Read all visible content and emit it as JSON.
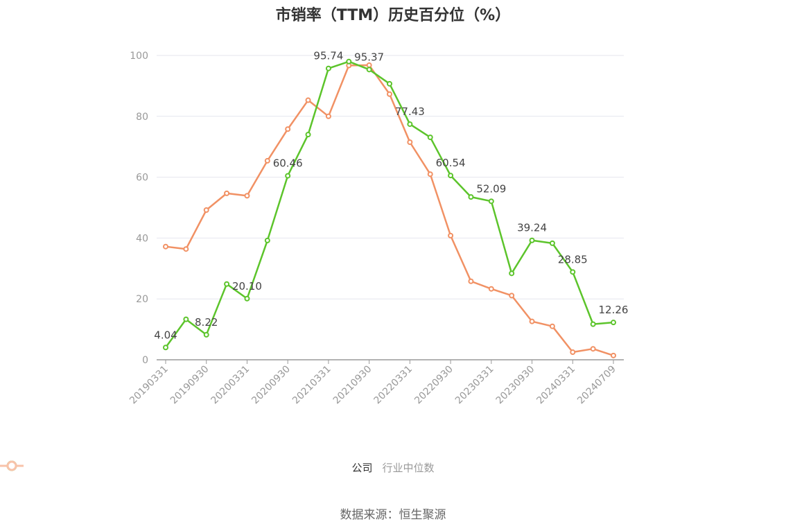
{
  "title": "市销率（TTM）历史百分位（%）",
  "source": "数据来源：恒生聚源",
  "legend": [
    {
      "name": "公司",
      "color": "#5cc42b"
    },
    {
      "name": "行业中位数",
      "color": "#f19164"
    }
  ],
  "chart_data": {
    "type": "line",
    "x": [
      "20190331",
      "20190630",
      "20190930",
      "20191231",
      "20200331",
      "20200630",
      "20200930",
      "20201231",
      "20210331",
      "20210630",
      "20210930",
      "20211231",
      "20220331",
      "20220630",
      "20220930",
      "20221231",
      "20230331",
      "20230630",
      "20230930",
      "20231231",
      "20240331",
      "20240630",
      "20240709"
    ],
    "x_tick_labels": [
      "20190331",
      "20190930",
      "20200331",
      "20200930",
      "20210331",
      "20210930",
      "20220331",
      "20220930",
      "20230331",
      "20230930",
      "20240331",
      "20240709"
    ],
    "y_ticks": [
      0,
      20,
      40,
      60,
      80,
      100
    ],
    "ylim": [
      0,
      100
    ],
    "grid": true,
    "legend_position": "bottom",
    "series": [
      {
        "name": "公司",
        "color": "#5cc42b",
        "values": [
          4.04,
          13.3,
          8.22,
          24.9,
          20.1,
          39.2,
          60.46,
          74.0,
          95.74,
          98.0,
          95.37,
          90.7,
          77.43,
          73.1,
          60.54,
          53.5,
          52.09,
          28.4,
          39.24,
          38.3,
          28.85,
          11.7,
          12.26
        ],
        "labels": [
          "4.04",
          "",
          "8.22",
          "",
          "20.10",
          "",
          "60.46",
          "",
          "95.74",
          "",
          "95.37",
          "",
          "77.43",
          "",
          "60.54",
          "",
          "52.09",
          "",
          "39.24",
          "",
          "28.85",
          "",
          "12.26"
        ]
      },
      {
        "name": "行业中位数",
        "color": "#f19164",
        "values": [
          37.2,
          36.4,
          49.2,
          54.7,
          53.9,
          65.4,
          75.8,
          85.3,
          80.0,
          96.7,
          96.8,
          87.3,
          71.5,
          61.0,
          40.8,
          25.8,
          23.3,
          21.1,
          12.6,
          11.0,
          2.5,
          3.6,
          1.4
        ]
      }
    ]
  }
}
